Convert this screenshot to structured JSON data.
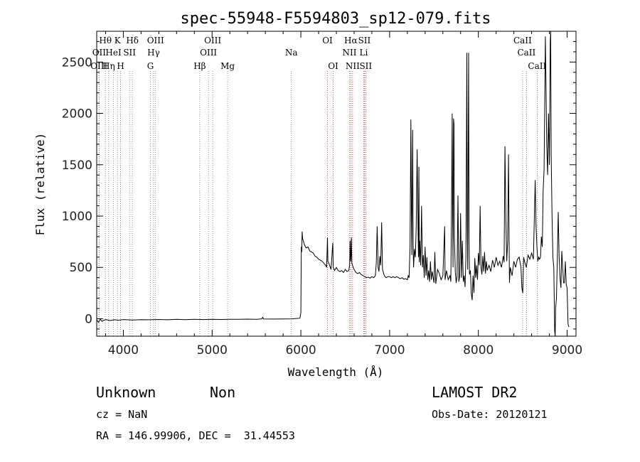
{
  "chart_data": {
    "type": "line",
    "title": "spec-55948-F5594803_sp12-079.fits",
    "xlabel": "Wavelength (Å)",
    "ylabel": "Flux (relative)",
    "xlim": [
      3700,
      9100
    ],
    "ylim": [
      -170,
      2800
    ],
    "xticks": [
      4000,
      5000,
      6000,
      7000,
      8000,
      9000
    ],
    "yticks": [
      0,
      500,
      1000,
      1500,
      2000,
      2500
    ],
    "grid": false,
    "series": [
      {
        "values": [
          [
            3700,
            -10
          ],
          [
            3720,
            -35
          ],
          [
            3740,
            -5
          ],
          [
            3760,
            -25
          ],
          [
            3780,
            -15
          ],
          [
            3800,
            -8
          ],
          [
            3850,
            -18
          ],
          [
            3900,
            -10
          ],
          [
            3950,
            -14
          ],
          [
            4000,
            -8
          ],
          [
            4100,
            -12
          ],
          [
            4200,
            -9
          ],
          [
            4300,
            -10
          ],
          [
            4400,
            -7
          ],
          [
            4500,
            -10
          ],
          [
            4600,
            -6
          ],
          [
            4700,
            -9
          ],
          [
            4800,
            -6
          ],
          [
            4900,
            -8
          ],
          [
            5000,
            -5
          ],
          [
            5100,
            -7
          ],
          [
            5200,
            -5
          ],
          [
            5300,
            -6
          ],
          [
            5400,
            -4
          ],
          [
            5500,
            -5
          ],
          [
            5560,
            -1
          ],
          [
            5570,
            15
          ],
          [
            5580,
            -2
          ],
          [
            5700,
            -3
          ],
          [
            5800,
            -2
          ],
          [
            5900,
            -1
          ],
          [
            5990,
            5
          ],
          [
            6000,
            60
          ],
          [
            6005,
            700
          ],
          [
            6010,
            650
          ],
          [
            6015,
            850
          ],
          [
            6020,
            780
          ],
          [
            6040,
            720
          ],
          [
            6060,
            690
          ],
          [
            6080,
            700
          ],
          [
            6100,
            660
          ],
          [
            6120,
            650
          ],
          [
            6140,
            640
          ],
          [
            6160,
            610
          ],
          [
            6180,
            600
          ],
          [
            6200,
            580
          ],
          [
            6220,
            570
          ],
          [
            6240,
            560
          ],
          [
            6260,
            540
          ],
          [
            6280,
            520
          ],
          [
            6290,
            500
          ],
          [
            6300,
            790
          ],
          [
            6305,
            560
          ],
          [
            6320,
            530
          ],
          [
            6340,
            480
          ],
          [
            6360,
            740
          ],
          [
            6365,
            500
          ],
          [
            6380,
            470
          ],
          [
            6400,
            500
          ],
          [
            6420,
            470
          ],
          [
            6440,
            460
          ],
          [
            6460,
            470
          ],
          [
            6480,
            450
          ],
          [
            6500,
            480
          ],
          [
            6520,
            460
          ],
          [
            6540,
            470
          ],
          [
            6550,
            520
          ],
          [
            6555,
            760
          ],
          [
            6560,
            560
          ],
          [
            6565,
            620
          ],
          [
            6570,
            790
          ],
          [
            6575,
            540
          ],
          [
            6590,
            500
          ],
          [
            6600,
            480
          ],
          [
            6620,
            450
          ],
          [
            6640,
            440
          ],
          [
            6660,
            450
          ],
          [
            6680,
            430
          ],
          [
            6700,
            420
          ],
          [
            6720,
            410
          ],
          [
            6740,
            400
          ],
          [
            6760,
            405
          ],
          [
            6780,
            395
          ],
          [
            6800,
            410
          ],
          [
            6820,
            400
          ],
          [
            6840,
            420
          ],
          [
            6850,
            550
          ],
          [
            6860,
            900
          ],
          [
            6870,
            500
          ],
          [
            6880,
            460
          ],
          [
            6890,
            610
          ],
          [
            6900,
            520
          ],
          [
            6910,
            940
          ],
          [
            6920,
            480
          ],
          [
            6940,
            420
          ],
          [
            6960,
            400
          ],
          [
            6980,
            410
          ],
          [
            7000,
            410
          ],
          [
            7020,
            400
          ],
          [
            7040,
            410
          ],
          [
            7060,
            400
          ],
          [
            7080,
            410
          ],
          [
            7100,
            400
          ],
          [
            7120,
            390
          ],
          [
            7140,
            400
          ],
          [
            7160,
            385
          ],
          [
            7180,
            390
          ],
          [
            7200,
            380
          ],
          [
            7210,
            420
          ],
          [
            7220,
            400
          ],
          [
            7230,
            700
          ],
          [
            7240,
            1940
          ],
          [
            7245,
            1100
          ],
          [
            7250,
            620
          ],
          [
            7260,
            1840
          ],
          [
            7265,
            700
          ],
          [
            7270,
            500
          ],
          [
            7280,
            680
          ],
          [
            7290,
            600
          ],
          [
            7300,
            900
          ],
          [
            7310,
            1650
          ],
          [
            7320,
            900
          ],
          [
            7325,
            600
          ],
          [
            7330,
            1480
          ],
          [
            7335,
            550
          ],
          [
            7340,
            760
          ],
          [
            7350,
            520
          ],
          [
            7360,
            1100
          ],
          [
            7370,
            500
          ],
          [
            7380,
            620
          ],
          [
            7390,
            400
          ],
          [
            7400,
            700
          ],
          [
            7410,
            420
          ],
          [
            7420,
            600
          ],
          [
            7430,
            380
          ],
          [
            7440,
            470
          ],
          [
            7450,
            360
          ],
          [
            7460,
            560
          ],
          [
            7470,
            380
          ],
          [
            7480,
            460
          ],
          [
            7500,
            350
          ],
          [
            7510,
            650
          ],
          [
            7520,
            340
          ],
          [
            7540,
            480
          ],
          [
            7560,
            440
          ],
          [
            7580,
            380
          ],
          [
            7600,
            420
          ],
          [
            7620,
            900
          ],
          [
            7625,
            380
          ],
          [
            7640,
            470
          ],
          [
            7660,
            380
          ],
          [
            7680,
            420
          ],
          [
            7690,
            360
          ],
          [
            7700,
            1380
          ],
          [
            7705,
            2000
          ],
          [
            7710,
            980
          ],
          [
            7715,
            500
          ],
          [
            7720,
            1950
          ],
          [
            7725,
            1900
          ],
          [
            7730,
            800
          ],
          [
            7740,
            450
          ],
          [
            7750,
            350
          ],
          [
            7760,
            410
          ],
          [
            7770,
            1200
          ],
          [
            7780,
            360
          ],
          [
            7790,
            420
          ],
          [
            7800,
            1030
          ],
          [
            7810,
            400
          ],
          [
            7820,
            760
          ],
          [
            7830,
            360
          ],
          [
            7840,
            420
          ],
          [
            7850,
            310
          ],
          [
            7860,
            600
          ],
          [
            7870,
            2590
          ],
          [
            7875,
            900
          ],
          [
            7880,
            480
          ],
          [
            7890,
            2590
          ],
          [
            7895,
            800
          ],
          [
            7900,
            430
          ],
          [
            7910,
            470
          ],
          [
            7920,
            250
          ],
          [
            7930,
            180
          ],
          [
            7940,
            420
          ],
          [
            7950,
            250
          ],
          [
            7960,
            590
          ],
          [
            7970,
            400
          ],
          [
            7980,
            520
          ],
          [
            7990,
            380
          ],
          [
            8000,
            640
          ],
          [
            8010,
            520
          ],
          [
            8020,
            1100
          ],
          [
            8030,
            500
          ],
          [
            8040,
            430
          ],
          [
            8050,
            610
          ],
          [
            8060,
            460
          ],
          [
            8070,
            650
          ],
          [
            8080,
            440
          ],
          [
            8090,
            560
          ],
          [
            8100,
            470
          ],
          [
            8120,
            520
          ],
          [
            8140,
            460
          ],
          [
            8160,
            570
          ],
          [
            8180,
            500
          ],
          [
            8200,
            600
          ],
          [
            8220,
            520
          ],
          [
            8240,
            560
          ],
          [
            8260,
            500
          ],
          [
            8280,
            610
          ],
          [
            8290,
            550
          ],
          [
            8300,
            1680
          ],
          [
            8310,
            950
          ],
          [
            8320,
            560
          ],
          [
            8330,
            750
          ],
          [
            8340,
            1600
          ],
          [
            8345,
            900
          ],
          [
            8350,
            350
          ],
          [
            8360,
            500
          ],
          [
            8380,
            420
          ],
          [
            8400,
            560
          ],
          [
            8420,
            500
          ],
          [
            8440,
            580
          ],
          [
            8460,
            600
          ],
          [
            8480,
            500
          ],
          [
            8490,
            300
          ],
          [
            8500,
            250
          ],
          [
            8510,
            600
          ],
          [
            8520,
            560
          ],
          [
            8540,
            500
          ],
          [
            8560,
            620
          ],
          [
            8580,
            580
          ],
          [
            8600,
            640
          ],
          [
            8620,
            580
          ],
          [
            8640,
            1350
          ],
          [
            8650,
            900
          ],
          [
            8660,
            700
          ],
          [
            8670,
            560
          ],
          [
            8680,
            600
          ],
          [
            8690,
            580
          ],
          [
            8700,
            600
          ],
          [
            8710,
            800
          ],
          [
            8720,
            700
          ],
          [
            8730,
            1250
          ],
          [
            8740,
            1450
          ],
          [
            8750,
            2300
          ],
          [
            8755,
            2750
          ],
          [
            8760,
            2400
          ],
          [
            8770,
            1700
          ],
          [
            8780,
            1400
          ],
          [
            8790,
            2000
          ],
          [
            8800,
            1500
          ],
          [
            8810,
            2700
          ],
          [
            8815,
            2800
          ],
          [
            8820,
            1600
          ],
          [
            8830,
            1000
          ],
          [
            8840,
            600
          ],
          [
            8850,
            500
          ],
          [
            8860,
            -120
          ],
          [
            8865,
            -170
          ],
          [
            8870,
            100
          ],
          [
            8880,
            200
          ],
          [
            8890,
            600
          ],
          [
            8900,
            1040
          ],
          [
            8910,
            600
          ],
          [
            8920,
            400
          ],
          [
            8930,
            300
          ],
          [
            8940,
            660
          ],
          [
            8950,
            500
          ],
          [
            8960,
            350
          ],
          [
            8970,
            350
          ],
          [
            8980,
            560
          ],
          [
            8990,
            330
          ],
          [
            9000,
            300
          ],
          [
            9010,
            -50
          ],
          [
            9020,
            -80
          ]
        ]
      }
    ],
    "line_markers": [
      {
        "label": "Hθ",
        "x": 3798,
        "row": 0
      },
      {
        "label": "OII",
        "x": 3727,
        "row": 1
      },
      {
        "label": "OIII",
        "x": 3726,
        "row": 2
      },
      {
        "label": "K",
        "x": 3934,
        "row": 0
      },
      {
        "label": "HeI",
        "x": 3889,
        "row": 1
      },
      {
        "label": "Hη",
        "x": 3835,
        "row": 2
      },
      {
        "label": "H",
        "x": 3969,
        "row": 2
      },
      {
        "label": "SII",
        "x": 4070,
        "row": 1
      },
      {
        "label": "Hδ",
        "x": 4102,
        "row": 0
      },
      {
        "label": "OIII",
        "x": 4363,
        "row": 0
      },
      {
        "label": "Hγ",
        "x": 4341,
        "row": 1
      },
      {
        "label": "G",
        "x": 4305,
        "row": 2
      },
      {
        "label": "OIII",
        "x": 5007,
        "row": 0
      },
      {
        "label": "OIII",
        "x": 4959,
        "row": 1
      },
      {
        "label": "Hβ",
        "x": 4861,
        "row": 2
      },
      {
        "label": "Mg",
        "x": 5175,
        "row": 2
      },
      {
        "label": "Na",
        "x": 5893,
        "row": 1
      },
      {
        "label": "OI",
        "x": 6300,
        "row": 0
      },
      {
        "label": "OI",
        "x": 6364,
        "row": 2
      },
      {
        "label": "Hα",
        "x": 6563,
        "row": 0
      },
      {
        "label": "SII",
        "x": 6716,
        "row": 0
      },
      {
        "label": "NII",
        "x": 6548,
        "row": 1
      },
      {
        "label": "Li",
        "x": 6708,
        "row": 1
      },
      {
        "label": "NII",
        "x": 6583,
        "row": 2
      },
      {
        "label": "SII",
        "x": 6731,
        "row": 2
      },
      {
        "label": "CaII",
        "x": 8498,
        "row": 0
      },
      {
        "label": "CaII",
        "x": 8542,
        "row": 1
      },
      {
        "label": "CaII",
        "x": 8662,
        "row": 2
      }
    ]
  },
  "footer": {
    "class": "Unknown",
    "subclass": "Non",
    "survey": "LAMOST DR2",
    "cz": "cz = NaN",
    "obs_date": "Obs-Date: 20120121",
    "coords": "RA = 146.99906, DEC =  31.44553"
  }
}
